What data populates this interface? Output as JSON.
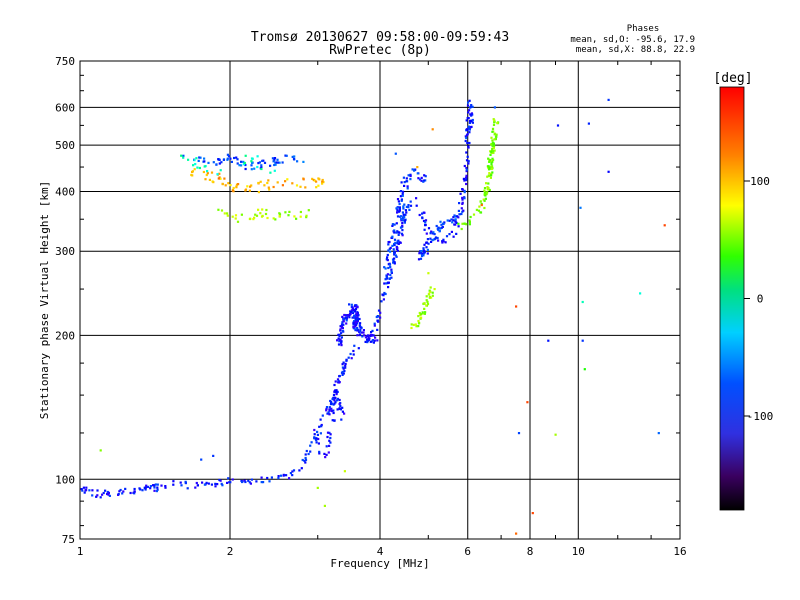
{
  "chart_data": {
    "type": "scatter",
    "title": "Tromsø 20130627 09:58:00-09:59:43",
    "subtitle": "RwPretec (8p)",
    "xlabel": "Frequency [MHz]",
    "ylabel": "Stationary phase Virtual Height [km]",
    "x_scale": "log",
    "y_scale": "log",
    "xlim": [
      1,
      16
    ],
    "ylim": [
      75,
      750
    ],
    "x_ticks": [
      {
        "value": 1,
        "label": "1"
      },
      {
        "value": 2,
        "label": "2"
      },
      {
        "value": 4,
        "label": "4"
      },
      {
        "value": 6,
        "label": "6"
      },
      {
        "value": 8,
        "label": "8"
      },
      {
        "value": 10,
        "label": "10"
      },
      {
        "value": 16,
        "label": "16"
      }
    ],
    "y_ticks": [
      {
        "value": 75,
        "label": "75"
      },
      {
        "value": 100,
        "label": "100"
      },
      {
        "value": 200,
        "label": "200"
      },
      {
        "value": 300,
        "label": "300"
      },
      {
        "value": 400,
        "label": "400"
      },
      {
        "value": 500,
        "label": "500"
      },
      {
        "value": 600,
        "label": "600"
      },
      {
        "value": 750,
        "label": "750"
      }
    ],
    "grid": true,
    "stats": {
      "heading": "Phases",
      "o_line": "mean, sd,O: -95.6, 17.9",
      "x_line": "mean, sd,X:  88.8, 22.9"
    },
    "colorbar": {
      "label": "[deg]",
      "range": [
        -180,
        180
      ],
      "ticks": [
        {
          "value": 100,
          "label": "100"
        },
        {
          "value": 0,
          "label": "0"
        },
        {
          "value": -100,
          "label": "-100"
        }
      ]
    },
    "traces": [
      {
        "points": [
          [
            1.0,
            95
          ],
          [
            1.05,
            94
          ],
          [
            1.1,
            93
          ],
          [
            1.2,
            94
          ],
          [
            1.3,
            95
          ],
          [
            1.4,
            96
          ],
          [
            1.5,
            97
          ],
          [
            1.6,
            98
          ],
          [
            1.7,
            97
          ],
          [
            1.8,
            98
          ],
          [
            1.9,
            98
          ],
          [
            2.0,
            99
          ],
          [
            2.2,
            99
          ],
          [
            2.4,
            100
          ],
          [
            2.6,
            101
          ],
          [
            2.8,
            108
          ],
          [
            3.0,
            125
          ],
          [
            3.2,
            145
          ],
          [
            3.4,
            175
          ],
          [
            3.5,
            185
          ],
          [
            3.7,
            190
          ],
          [
            3.9,
            205
          ],
          [
            4.1,
            250
          ],
          [
            4.3,
            300
          ],
          [
            4.5,
            360
          ],
          [
            4.7,
            385
          ],
          [
            5.0,
            330
          ],
          [
            5.3,
            315
          ],
          [
            5.6,
            325
          ],
          [
            5.8,
            360
          ],
          [
            5.95,
            450
          ],
          [
            6.05,
            620
          ],
          [
            6.1,
            540
          ]
        ],
        "phase": -110,
        "spread": 0.022,
        "count": 420,
        "seed": 11
      },
      {
        "points": [
          [
            2.95,
            125
          ],
          [
            3.1,
            110
          ],
          [
            3.2,
            130
          ],
          [
            3.3,
            150
          ],
          [
            3.35,
            135
          ]
        ],
        "phase": -115,
        "spread": 0.025,
        "count": 45,
        "seed": 23
      },
      {
        "points": [
          [
            3.3,
            190
          ],
          [
            3.4,
            220
          ],
          [
            3.55,
            230
          ],
          [
            3.6,
            205
          ],
          [
            3.75,
            200
          ],
          [
            3.9,
            195
          ]
        ],
        "phase": -112,
        "spread": 0.03,
        "count": 150,
        "seed": 37
      },
      {
        "points": [
          [
            4.1,
            270
          ],
          [
            4.3,
            330
          ],
          [
            4.45,
            400
          ],
          [
            4.6,
            430
          ],
          [
            4.8,
            440
          ],
          [
            4.9,
            420
          ]
        ],
        "phase": -105,
        "spread": 0.035,
        "count": 90,
        "seed": 41
      },
      {
        "points": [
          [
            4.8,
            290
          ],
          [
            5.0,
            310
          ],
          [
            5.2,
            330
          ],
          [
            5.4,
            345
          ],
          [
            5.7,
            350
          ]
        ],
        "phase": -100,
        "spread": 0.025,
        "count": 60,
        "seed": 53
      },
      {
        "points": [
          [
            4.6,
            205
          ],
          [
            4.8,
            215
          ],
          [
            4.95,
            235
          ],
          [
            5.1,
            250
          ]
        ],
        "phase": 75,
        "spread": 0.02,
        "count": 40,
        "seed": 59
      },
      {
        "points": [
          [
            5.8,
            340
          ],
          [
            6.1,
            350
          ],
          [
            6.4,
            370
          ],
          [
            6.6,
            420
          ],
          [
            6.7,
            480
          ],
          [
            6.8,
            540
          ],
          [
            6.85,
            580
          ]
        ],
        "phase": 70,
        "spread": 0.025,
        "count": 110,
        "seed": 61
      },
      {
        "points": [
          [
            1.6,
            470
          ],
          [
            1.8,
            460
          ],
          [
            2.0,
            470
          ],
          [
            2.2,
            450
          ],
          [
            2.4,
            460
          ],
          [
            2.6,
            470
          ],
          [
            2.8,
            465
          ]
        ],
        "phase": -95,
        "spread": 0.025,
        "count": 70,
        "seed": 67
      },
      {
        "points": [
          [
            1.65,
            440
          ],
          [
            1.9,
            425
          ],
          [
            2.1,
            400
          ],
          [
            2.3,
            410
          ],
          [
            2.6,
            420
          ],
          [
            3.0,
            415
          ],
          [
            3.1,
            425
          ]
        ],
        "phase": 130,
        "spread": 0.03,
        "count": 70,
        "seed": 71
      },
      {
        "points": [
          [
            1.9,
            360
          ],
          [
            2.1,
            350
          ],
          [
            2.3,
            360
          ],
          [
            2.6,
            355
          ],
          [
            2.9,
            360
          ]
        ],
        "phase": 80,
        "spread": 0.025,
        "count": 40,
        "seed": 73
      },
      {
        "points": [
          [
            1.6,
            470
          ],
          [
            1.9,
            440
          ],
          [
            2.2,
            470
          ],
          [
            2.5,
            430
          ]
        ],
        "phase": -20,
        "spread": 0.03,
        "count": 25,
        "seed": 79
      }
    ],
    "scatter_points": [
      [
        1.1,
        115,
        70
      ],
      [
        1.75,
        110,
        -95
      ],
      [
        1.85,
        112,
        -100
      ],
      [
        3.0,
        96,
        80
      ],
      [
        3.1,
        88,
        80
      ],
      [
        3.4,
        104,
        90
      ],
      [
        7.5,
        77,
        150
      ],
      [
        7.5,
        230,
        160
      ],
      [
        7.6,
        125,
        -95
      ],
      [
        7.9,
        145,
        160
      ],
      [
        8.1,
        85,
        160
      ],
      [
        8.7,
        195,
        -110
      ],
      [
        9.0,
        124,
        80
      ],
      [
        9.1,
        550,
        -110
      ],
      [
        10.1,
        370,
        -80
      ],
      [
        10.2,
        235,
        -20
      ],
      [
        10.3,
        170,
        40
      ],
      [
        10.5,
        555,
        -105
      ],
      [
        10.2,
        195,
        -100
      ],
      [
        11.5,
        440,
        -115
      ],
      [
        11.5,
        622,
        -100
      ],
      [
        13.3,
        245,
        -30
      ],
      [
        14.5,
        125,
        -85
      ],
      [
        14.9,
        340,
        160
      ],
      [
        5.1,
        540,
        140
      ],
      [
        6.8,
        600,
        -90
      ],
      [
        5.0,
        270,
        90
      ],
      [
        4.75,
        450,
        130
      ],
      [
        6.4,
        375,
        150
      ],
      [
        4.3,
        480,
        -90
      ]
    ]
  }
}
